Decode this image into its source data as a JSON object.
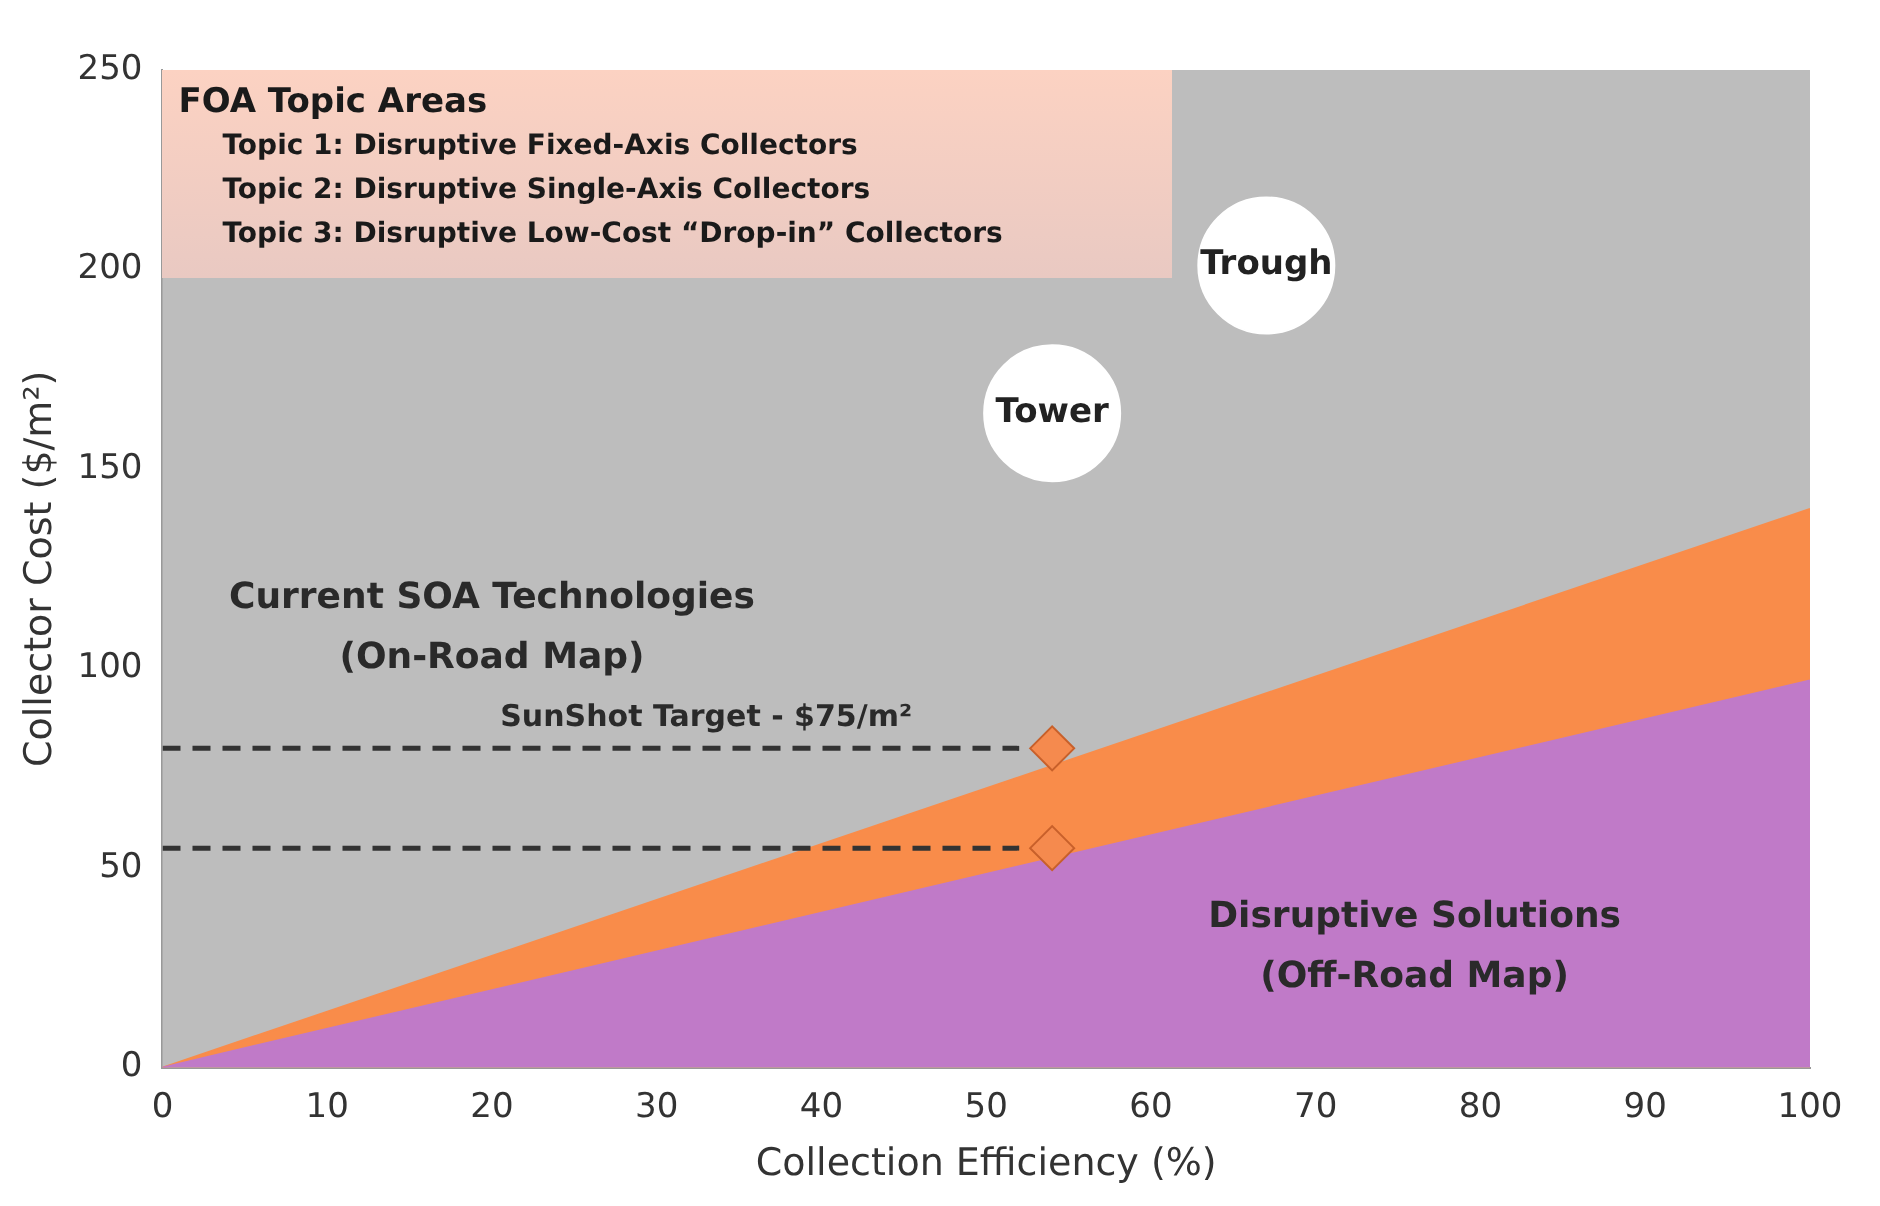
{
  "chart_data": {
    "type": "area",
    "xlabel": "Collection Efficiency (%)",
    "ylabel": "Collector Cost ($/m²)",
    "xlim": [
      0,
      100
    ],
    "ylim": [
      0,
      250
    ],
    "xticks": [
      0,
      10,
      20,
      30,
      40,
      50,
      60,
      70,
      80,
      90,
      100
    ],
    "yticks": [
      0,
      50,
      100,
      150,
      200,
      250
    ],
    "grid": false,
    "legend": false,
    "series": [
      {
        "color": "#f98c4a",
        "x": [
          0,
          100
        ],
        "values": [
          0,
          140
        ]
      },
      {
        "color": "#c07ac8",
        "x": [
          0,
          100
        ],
        "values": [
          0,
          97
        ]
      },
      {
        "type": "line",
        "color": "#333333",
        "line_style": "dashed",
        "marker": "none",
        "x": [
          0,
          52
        ],
        "values": [
          80,
          80
        ]
      },
      {
        "type": "line",
        "color": "#333333",
        "line_style": "dashed",
        "marker": "none",
        "x": [
          0,
          52
        ],
        "values": [
          55,
          55
        ]
      },
      {
        "type": "scatter",
        "color": "#f58a4e",
        "marker": "diamond",
        "x": [
          54,
          54
        ],
        "values": [
          80,
          55
        ]
      },
      {
        "type": "scatter",
        "name": "Tower",
        "color": "#ffffff",
        "marker": "circle",
        "x": [
          54
        ],
        "values": [
          164
        ]
      },
      {
        "type": "scatter",
        "name": "Trough",
        "color": "#ffffff",
        "marker": "circle",
        "x": [
          67
        ],
        "values": [
          201
        ]
      }
    ],
    "annotations": [
      "FOA Topic Areas",
      "Topic 1: Disruptive Fixed-Axis Collectors",
      "Topic 2: Disruptive Single-Axis Collectors",
      "Topic 3: Disruptive Low-Cost “Drop-in” Collectors",
      "Current SOA Technologies\n(On-Road Map)",
      "SunShot Target - $75/m²",
      "Disruptive Solutions\n(Off-Road Map)"
    ]
  }
}
